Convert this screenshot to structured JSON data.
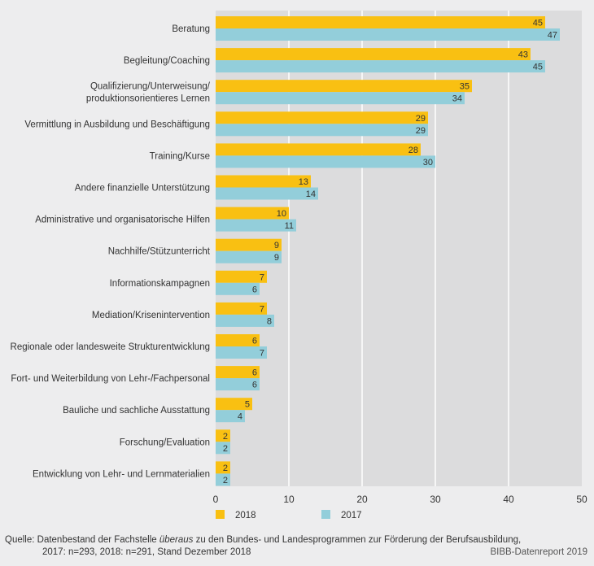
{
  "chart_data": {
    "type": "bar",
    "orientation": "horizontal",
    "categories": [
      "Beratung",
      "Begleitung/Coaching",
      "Qualifizierung/Unterweisung/\nproduktionsorientieres Lernen",
      "Vermittlung in Ausbildung und Beschäftigung",
      "Training/Kurse",
      "Andere finanzielle Unterstützung",
      "Administrative und organisatorische Hilfen",
      "Nachhilfe/Stützunterricht",
      "Informationskampagnen",
      "Mediation/Krisenintervention",
      "Regionale oder landesweite Strukturentwicklung",
      "Fort- und Weiterbildung von Lehr-/Fachpersonal",
      "Bauliche und sachliche Ausstattung",
      "Forschung/Evaluation",
      "Entwicklung von Lehr- und Lernmaterialien"
    ],
    "series": [
      {
        "name": "2018",
        "color": "#f9c012",
        "values": [
          45,
          43,
          35,
          29,
          28,
          13,
          10,
          9,
          7,
          7,
          6,
          6,
          5,
          2,
          2
        ]
      },
      {
        "name": "2017",
        "color": "#93ceda",
        "values": [
          47,
          45,
          34,
          29,
          30,
          14,
          11,
          9,
          6,
          8,
          7,
          6,
          4,
          2,
          2
        ]
      }
    ],
    "xlim": [
      0,
      50
    ],
    "xticks": [
      0,
      10,
      20,
      30,
      40,
      50
    ],
    "grid": true,
    "legend": "bottom",
    "data_labels": true
  },
  "footer": {
    "source_label": "Quelle:",
    "source_line1_a": "Datenbestand der Fachstelle ",
    "source_line1_em": "überaus",
    "source_line1_b": " zu den Bundes- und Landesprogrammen zur Förderung der Berufsausbildung,",
    "source_line2": "2017: n=293, 2018: n=291, Stand Dezember 2018",
    "credit": "BIBB-Datenreport 2019"
  }
}
